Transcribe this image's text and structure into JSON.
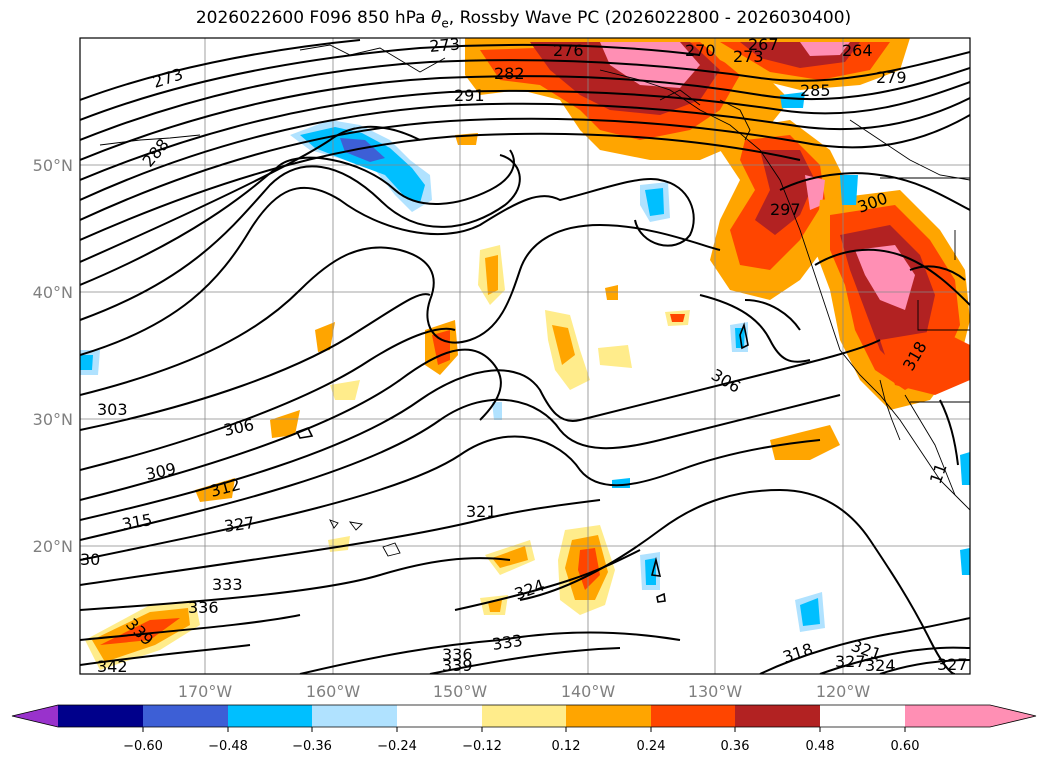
{
  "title": "2026022600 F096 850 hPa θe, Rossby Wave PC (2026022800 - 2026030400)",
  "title_parts": {
    "prefix": "2026022600 F096 850 hPa ",
    "theta": "θ",
    "sub": "e",
    "suffix": ", Rossby Wave PC (2026022800 - 2026030400)"
  },
  "map": {
    "lat_labels": [
      "50°N",
      "40°N",
      "30°N",
      "20°N"
    ],
    "lon_labels": [
      "170°W",
      "160°W",
      "150°W",
      "140°W",
      "130°W",
      "120°W"
    ],
    "contour_labels": [
      "273",
      "273",
      "276",
      "282",
      "291",
      "270",
      "273",
      "267",
      "264",
      "279",
      "285",
      "288",
      "303",
      "306",
      "309",
      "312",
      "315",
      "327",
      "321",
      "333",
      "336",
      "339",
      "342",
      "324",
      "333",
      "336",
      "339",
      "306",
      "297",
      "300",
      "318",
      "318",
      "321",
      "327",
      "324",
      "327",
      "11",
      "30"
    ]
  },
  "colorbar": {
    "tick_labels": [
      "−0.60",
      "−0.48",
      "−0.36",
      "−0.24",
      "−0.12",
      "0.12",
      "0.24",
      "0.36",
      "0.48",
      "0.60"
    ],
    "colors": [
      "#9932cc",
      "#00008b",
      "#3d5fd6",
      "#00bfff",
      "#b0e2ff",
      "#ffffff",
      "#ffec8b",
      "#ffa500",
      "#ff4500",
      "#b22222",
      "#ff8fb4"
    ]
  }
}
